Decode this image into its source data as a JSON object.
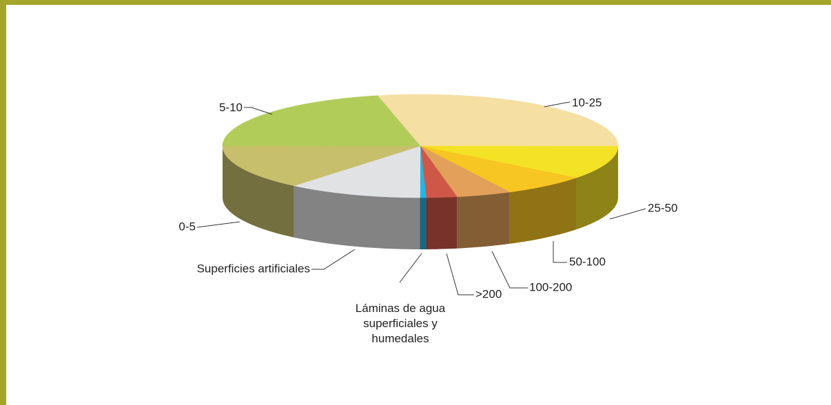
{
  "chart_data": {
    "type": "pie3d",
    "categories": [
      "10-25",
      "25-50",
      "50-100",
      "100-200",
      ">200",
      "Láminas de agua superficiales y humedales",
      "Superficies artificiales",
      "0-5",
      "5-10"
    ],
    "values": [
      28.5,
      10.5,
      7,
      4.5,
      2.5,
      0.5,
      11,
      14,
      21.5
    ],
    "colors": [
      "#f5dfa3",
      "#f4e226",
      "#f8c622",
      "#e2a05a",
      "#cf5748",
      "#28b4e2",
      "#e1e2e4",
      "#c8bf6d",
      "#b2cc5a"
    ]
  }
}
